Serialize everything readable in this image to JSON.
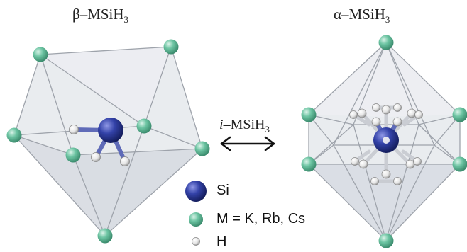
{
  "titles": {
    "beta_greek": "β",
    "beta_rest": "–MSiH",
    "beta_sub": "3",
    "alpha_greek": "α",
    "alpha_rest": "–MSiH",
    "alpha_sub": "3",
    "i_prefix": "i",
    "i_rest": "–MSiH",
    "i_sub": "3"
  },
  "legend": {
    "si": "Si",
    "m": "M = K, Rb, Cs",
    "h": "H"
  },
  "colors": {
    "si_atom": "#2d3a9a",
    "m_atom": "#6cc4a2",
    "h_atom": "#f2f2f2",
    "polyhedron_face": "#dfe2e8",
    "polyhedron_edge": "#9ea3ab"
  },
  "arrow": "double-headed-arrow"
}
